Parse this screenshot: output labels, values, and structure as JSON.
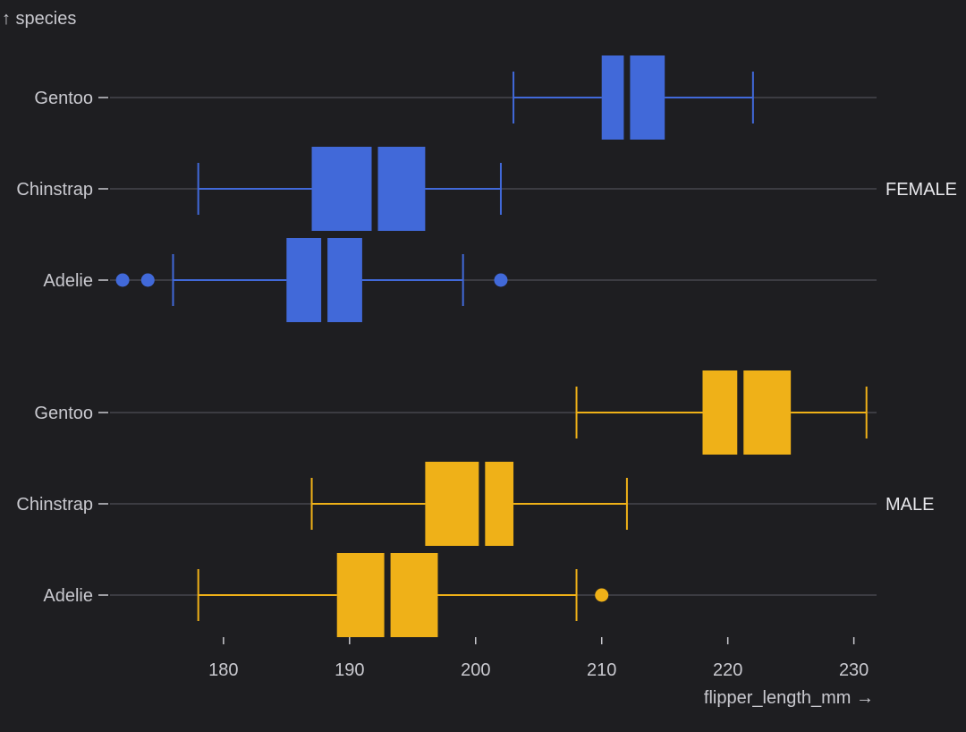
{
  "chart_data": {
    "type": "boxplot",
    "orientation": "horizontal",
    "xlabel": "flipper_length_mm →",
    "ylabel": "↑ species",
    "xlim": [
      171,
      231.8
    ],
    "xticks": [
      180,
      190,
      200,
      210,
      220,
      230
    ],
    "grid": false,
    "facets": [
      {
        "label": "FEMALE",
        "color": "#4169d9",
        "boxes": [
          {
            "category": "Gentoo",
            "whisker_low": 203,
            "q1": 210,
            "median": 212,
            "q3": 215,
            "whisker_high": 222,
            "outliers": []
          },
          {
            "category": "Chinstrap",
            "whisker_low": 178,
            "q1": 187,
            "median": 192,
            "q3": 196,
            "whisker_high": 202,
            "outliers": []
          },
          {
            "category": "Adelie",
            "whisker_low": 176,
            "q1": 185,
            "median": 188,
            "q3": 191,
            "whisker_high": 199,
            "outliers": [
              172,
              174,
              202
            ]
          }
        ]
      },
      {
        "label": "MALE",
        "color": "#efb118",
        "boxes": [
          {
            "category": "Gentoo",
            "whisker_low": 208,
            "q1": 218,
            "median": 221,
            "q3": 225,
            "whisker_high": 231,
            "outliers": []
          },
          {
            "category": "Chinstrap",
            "whisker_low": 187,
            "q1": 196,
            "median": 200.5,
            "q3": 203,
            "whisker_high": 212,
            "outliers": []
          },
          {
            "category": "Adelie",
            "whisker_low": 178,
            "q1": 189,
            "median": 193,
            "q3": 197,
            "whisker_high": 208,
            "outliers": [
              210
            ]
          }
        ]
      }
    ]
  }
}
